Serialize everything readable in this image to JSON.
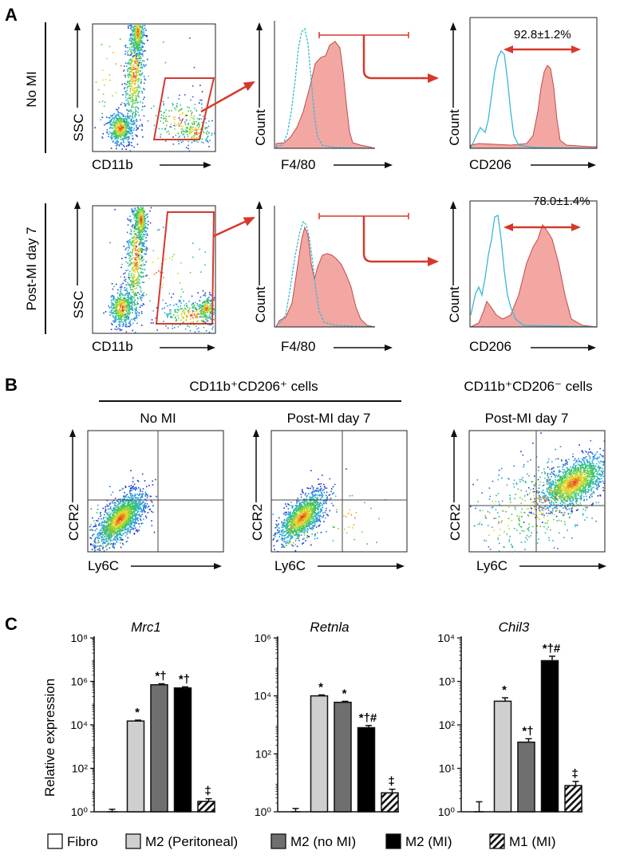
{
  "panel_labels": {
    "A": "A",
    "B": "B",
    "C": "C"
  },
  "colors": {
    "gate": "#d6392c",
    "pos_fill": "#f2a7a3",
    "ctrl_line": "#39b8d6",
    "heat_low": "#1f2bd0",
    "heat_high": "#e2311b"
  },
  "panel_a": {
    "rows": [
      {
        "label": "No MI",
        "percent": "92.8±1.2%"
      },
      {
        "label": "Post-MI day 7",
        "percent": "78.0±1.4%"
      }
    ],
    "axes": {
      "ssc": "SSC",
      "cd11b": "CD11b",
      "count": "Count",
      "f480": "F4/80",
      "cd206": "CD206"
    }
  },
  "panel_b": {
    "group_pos": "CD11b⁺CD206⁺ cells",
    "group_neg": "CD11b⁺CD206⁻ cells",
    "plots": [
      {
        "title": "No MI"
      },
      {
        "title": "Post-MI day 7"
      },
      {
        "title": "Post-MI day 7"
      }
    ],
    "xlabel": "Ly6C",
    "ylabel": "CCR2"
  },
  "chart_data": [
    {
      "type": "bar",
      "title": "Mrc1",
      "ylabel": "Relative expression",
      "yscale": "log",
      "ylim": [
        1,
        100000000
      ],
      "ytick_labels": [
        "10⁰",
        "10²",
        "10⁴",
        "10⁶",
        "10⁸"
      ],
      "categories": [
        "Fibro",
        "M2 (Peritoneal)",
        "M2 (no MI)",
        "M2 (MI)",
        "M1 (MI)"
      ],
      "values": [
        1,
        15000,
        700000,
        500000,
        3
      ],
      "errors_upper": [
        1.3,
        16500,
        780000,
        560000,
        4
      ],
      "annotations": [
        "",
        "*",
        "*†",
        "*†",
        "‡"
      ]
    },
    {
      "type": "bar",
      "title": "Retnla",
      "ylabel": "",
      "yscale": "log",
      "ylim": [
        1,
        1000000
      ],
      "ytick_labels": [
        "10⁰",
        "10²",
        "10⁴",
        "10⁶"
      ],
      "categories": [
        "Fibro",
        "M2 (Peritoneal)",
        "M2 (no MI)",
        "M2 (MI)",
        "M1 (MI)"
      ],
      "values": [
        1,
        10000,
        6000,
        800,
        4.5
      ],
      "errors_upper": [
        1.3,
        10800,
        6500,
        950,
        6
      ],
      "annotations": [
        "",
        "*",
        "*",
        "*†#",
        "‡"
      ]
    },
    {
      "type": "bar",
      "title": "Chil3",
      "ylabel": "",
      "yscale": "log",
      "ylim": [
        1,
        10000
      ],
      "ytick_labels": [
        "10⁰",
        "10¹",
        "10²",
        "10³",
        "10⁴"
      ],
      "categories": [
        "Fibro",
        "M2 (Peritoneal)",
        "M2 (no MI)",
        "M2 (MI)",
        "M1 (MI)"
      ],
      "values": [
        1,
        350,
        40,
        3000,
        4
      ],
      "errors_upper": [
        1.7,
        420,
        48,
        3800,
        5
      ],
      "annotations": [
        "",
        "*",
        "*†",
        "*†#",
        "‡"
      ]
    }
  ],
  "legend": [
    {
      "label": "Fibro",
      "style": "white"
    },
    {
      "label": "M2 (Peritoneal)",
      "style": "light"
    },
    {
      "label": "M2 (no MI)",
      "style": "gray"
    },
    {
      "label": "M2 (MI)",
      "style": "black"
    },
    {
      "label": "M1 (MI)",
      "style": "hatch"
    }
  ]
}
